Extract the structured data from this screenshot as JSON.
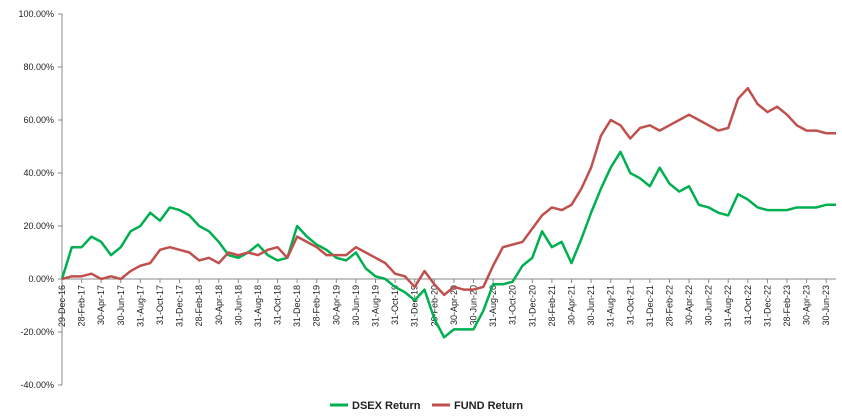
{
  "chart_data": {
    "type": "line",
    "categories": [
      "29-Dec-16",
      null,
      "28-Feb-17",
      null,
      "30-Apr-17",
      null,
      "30-Jun-17",
      null,
      "31-Aug-17",
      null,
      "31-Oct-17",
      null,
      "31-Dec-17",
      null,
      "28-Feb-18",
      null,
      "30-Apr-18",
      null,
      "30-Jun-18",
      null,
      "31-Aug-18",
      null,
      "31-Oct-18",
      null,
      "31-Dec-18",
      null,
      "28-Feb-19",
      null,
      "30-Apr-19",
      null,
      "30-Jun-19",
      null,
      "31-Aug-19",
      null,
      "31-Oct-19",
      null,
      "31-Dec-19",
      null,
      "29-Feb-20",
      null,
      "30-Apr-20",
      null,
      "30-Jun-20",
      null,
      "31-Aug-20",
      null,
      "31-Oct-20",
      null,
      "31-Dec-20",
      null,
      "28-Feb-21",
      null,
      "30-Apr-21",
      null,
      "30-Jun-21",
      null,
      "31-Aug-21",
      null,
      "31-Oct-21",
      null,
      "31-Dec-21",
      null,
      "28-Feb-22",
      null,
      "30-Apr-22",
      null,
      "30-Jun-22",
      null,
      "31-Aug-22",
      null,
      "31-Oct-22",
      null,
      "31-Dec-22",
      null,
      "28-Feb-23",
      null,
      "30-Apr-23",
      null,
      "30-Jun-23",
      null
    ],
    "series": [
      {
        "name": "DSEX Return",
        "color": "#00b050",
        "values": [
          0,
          12,
          12,
          16,
          14,
          9,
          12,
          18,
          20,
          25,
          22,
          27,
          26,
          24,
          20,
          18,
          14,
          9,
          8,
          10,
          13,
          9,
          7,
          8,
          20,
          16,
          13,
          11,
          8,
          7,
          10,
          4,
          1,
          0,
          -3,
          -5,
          -8,
          -4,
          -15,
          -22,
          -19,
          -19,
          -19,
          -12,
          -2,
          -2,
          -1,
          5,
          8,
          18,
          12,
          14,
          6,
          15,
          25,
          34,
          42,
          48,
          40,
          38,
          35,
          42,
          36,
          33,
          35,
          28,
          27,
          25,
          24,
          32,
          30,
          27,
          26,
          26,
          26,
          27,
          27,
          27,
          28,
          28
        ]
      },
      {
        "name": "FUND Return",
        "color": "#c0504d",
        "values": [
          0,
          1,
          1,
          2,
          0,
          1,
          0,
          3,
          5,
          6,
          11,
          12,
          11,
          10,
          7,
          8,
          6,
          10,
          9,
          10,
          9,
          11,
          12,
          8,
          16,
          14,
          12,
          9,
          9,
          9,
          12,
          10,
          8,
          6,
          2,
          1,
          -3,
          3,
          -2,
          -6,
          -3,
          -4,
          -4,
          -3,
          5,
          12,
          13,
          14,
          19,
          24,
          27,
          26,
          28,
          34,
          42,
          54,
          60,
          58,
          53,
          57,
          58,
          56,
          58,
          60,
          62,
          60,
          58,
          56,
          57,
          68,
          72,
          66,
          63,
          65,
          62,
          58,
          56,
          56,
          55,
          55
        ]
      }
    ],
    "ylim": [
      -40,
      100
    ],
    "yticks": [
      {
        "value": -40,
        "label": "-40.00%"
      },
      {
        "value": -20,
        "label": "-20.00%"
      },
      {
        "value": 0,
        "label": "0.00%"
      },
      {
        "value": 20,
        "label": "20.00%"
      },
      {
        "value": 40,
        "label": "40.00%"
      },
      {
        "value": 60,
        "label": "60.00%"
      },
      {
        "value": 80,
        "label": "80.00%"
      },
      {
        "value": 100,
        "label": "100.00%"
      }
    ],
    "grid": false,
    "legend": "bottom"
  }
}
